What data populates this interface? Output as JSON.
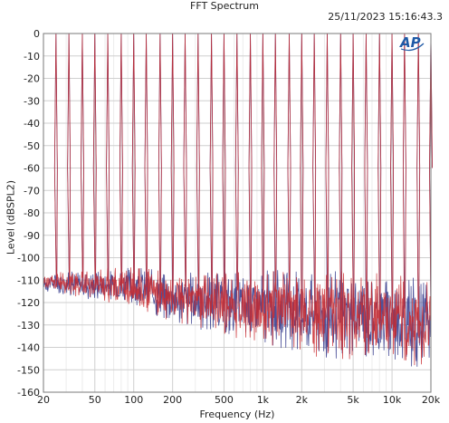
{
  "header": {
    "title": "FFT Spectrum",
    "timestamp": "25/11/2023 15:16:43.3"
  },
  "logo": {
    "text": "AP",
    "color": "#1f5aa6"
  },
  "chart_data": {
    "type": "line",
    "title": "FFT Spectrum",
    "xlabel": "Frequency (Hz)",
    "ylabel": "Level (dBSPL2)",
    "xscale": "log",
    "xlim": [
      20,
      20000
    ],
    "ylim": [
      -160,
      0
    ],
    "grid": true,
    "x_ticks": [
      20,
      50,
      100,
      200,
      500,
      1000,
      2000,
      5000,
      10000,
      20000
    ],
    "x_tick_labels": [
      "20",
      "50",
      "100",
      "200",
      "500",
      "1k",
      "2k",
      "5k",
      "10k",
      "20k"
    ],
    "y_ticks": [
      0,
      -10,
      -20,
      -30,
      -40,
      -50,
      -60,
      -70,
      -80,
      -90,
      -100,
      -110,
      -120,
      -130,
      -140,
      -150,
      -160
    ],
    "y_tick_labels": [
      "0",
      "-10",
      "-20",
      "-30",
      "-40",
      "-50",
      "-60",
      "-70",
      "-80",
      "-90",
      "-100",
      "-110",
      "-120",
      "-130",
      "-140",
      "-150",
      "-160"
    ],
    "tone_frequencies_hz": [
      20,
      25,
      31.5,
      40,
      50,
      63,
      80,
      100,
      125,
      160,
      200,
      250,
      315,
      400,
      500,
      630,
      800,
      1000,
      1250,
      1600,
      2000,
      2500,
      3150,
      4000,
      5000,
      6300,
      8000,
      10000,
      12500,
      16000,
      20000
    ],
    "tone_level_db": 0,
    "noise_floor_db": [
      {
        "freq_hz": 20,
        "level_db": -111
      },
      {
        "freq_hz": 100,
        "level_db": -113
      },
      {
        "freq_hz": 200,
        "level_db": -118
      },
      {
        "freq_hz": 1000,
        "level_db": -122
      },
      {
        "freq_hz": 5000,
        "level_db": -126
      },
      {
        "freq_hz": 10000,
        "level_db": -127
      },
      {
        "freq_hz": 20000,
        "level_db": -130
      }
    ],
    "noise_floor_min_db": -152,
    "series": [
      {
        "color": "#3a3f8f"
      },
      {
        "color": "#c8282d"
      }
    ]
  }
}
